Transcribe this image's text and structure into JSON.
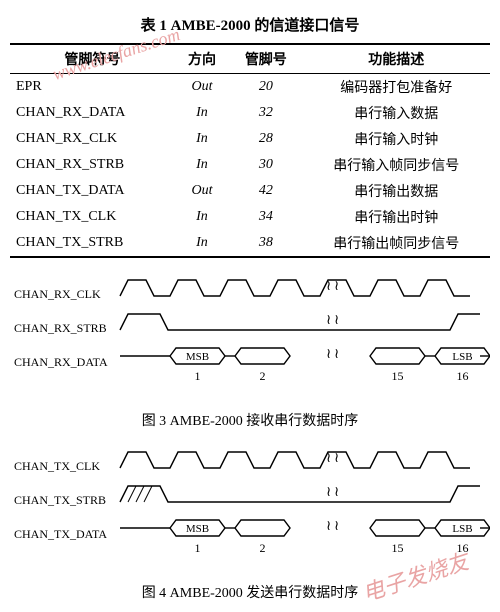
{
  "title": "表 1  AMBE-2000 的信道接口信号",
  "columns": [
    "管脚符号",
    "方向",
    "管脚号",
    "功能描述"
  ],
  "rows": [
    [
      "EPR",
      "Out",
      "20",
      "编码器打包准备好"
    ],
    [
      "CHAN_RX_DATA",
      "In",
      "32",
      "串行输入数据"
    ],
    [
      "CHAN_RX_CLK",
      "In",
      "28",
      "串行输入时钟"
    ],
    [
      "CHAN_RX_STRB",
      "In",
      "30",
      "串行输入帧同步信号"
    ],
    [
      "CHAN_TX_DATA",
      "Out",
      "42",
      "串行输出数据"
    ],
    [
      "CHAN_TX_CLK",
      "In",
      "34",
      "串行输出时钟"
    ],
    [
      "CHAN_TX_STRB",
      "In",
      "38",
      "串行输出帧同步信号"
    ]
  ],
  "diagram1": {
    "caption": "图 3  AMBE-2000 接收串行数据时序",
    "signals": [
      "CHAN_RX_CLK",
      "CHAN_RX_STRB",
      "CHAN_RX_DATA"
    ],
    "data_cells": [
      "MSB",
      "",
      "",
      "LSB"
    ],
    "indices": [
      "1",
      "2",
      "15",
      "16"
    ],
    "stroke": "#000000",
    "stroke_width": 1.4,
    "label_fontsize": 12
  },
  "diagram2": {
    "caption": "图 4  AMBE-2000 发送串行数据时序",
    "signals": [
      "CHAN_TX_CLK",
      "CHAN_TX_STRB",
      "CHAN_TX_DATA"
    ],
    "data_cells": [
      "MSB",
      "",
      "",
      "LSB"
    ],
    "indices": [
      "1",
      "2",
      "15",
      "16"
    ],
    "stroke": "#000000",
    "stroke_width": 1.4,
    "label_fontsize": 12
  },
  "watermarks": {
    "top": "www.elecfans.com",
    "bottom": "电子发烧友"
  },
  "colors": {
    "bg": "#ffffff",
    "fg": "#000000",
    "wm": "#e9a4a4"
  }
}
